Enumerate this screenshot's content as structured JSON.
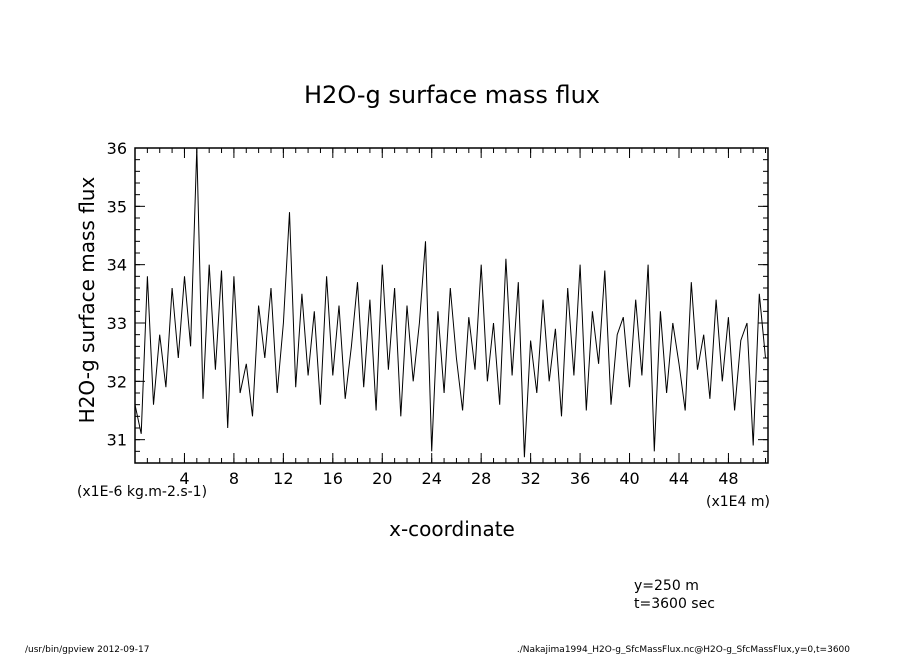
{
  "chart_data": {
    "type": "line",
    "title": "H2O-g surface mass flux",
    "ylabel": "H2O-g surface mass flux",
    "xlabel": "x-coordinate",
    "yunits": "(x1E-6 kg.m-2.s-1)",
    "xunits": "(x1E4 m)",
    "xlim": [
      0,
      51.2
    ],
    "ylim": [
      30.6,
      36.0
    ],
    "xticks": [
      4,
      8,
      12,
      16,
      20,
      24,
      28,
      32,
      36,
      40,
      44,
      48
    ],
    "yticks": [
      31,
      32,
      33,
      34,
      35,
      36
    ],
    "tick_labels_x": [
      "4",
      "8",
      "12",
      "16",
      "20",
      "24",
      "28",
      "32",
      "36",
      "40",
      "44",
      "48"
    ],
    "tick_labels_y": [
      "31",
      "32",
      "33",
      "34",
      "35",
      "36"
    ],
    "series": [
      {
        "x": [
          0,
          0.5,
          1,
          1.5,
          2,
          2.5,
          3,
          3.5,
          4,
          4.5,
          5,
          5.5,
          6,
          6.5,
          7,
          7.5,
          8,
          8.5,
          9,
          9.5,
          10,
          10.5,
          11,
          11.5,
          12,
          12.5,
          13,
          13.5,
          14,
          14.5,
          15,
          15.5,
          16,
          16.5,
          17,
          17.5,
          18,
          18.5,
          19,
          19.5,
          20,
          20.5,
          21,
          21.5,
          22,
          22.5,
          23,
          23.5,
          24,
          24.5,
          25,
          25.5,
          26,
          26.5,
          27,
          27.5,
          28,
          28.5,
          29,
          29.5,
          30,
          30.5,
          31,
          31.5,
          32,
          32.5,
          33,
          33.5,
          34,
          34.5,
          35,
          35.5,
          36,
          36.5,
          37,
          37.5,
          38,
          38.5,
          39,
          39.5,
          40,
          40.5,
          41,
          41.5,
          42,
          42.5,
          43,
          43.5,
          44,
          44.5,
          45,
          45.5,
          46,
          46.5,
          47,
          47.5,
          48,
          48.5,
          49,
          49.5,
          50,
          50.5,
          51
        ],
        "values": [
          31.6,
          31.1,
          33.8,
          31.6,
          32.8,
          31.9,
          33.6,
          32.4,
          33.8,
          32.6,
          36.0,
          31.7,
          34.0,
          32.2,
          33.9,
          31.2,
          33.8,
          31.8,
          32.3,
          31.4,
          33.3,
          32.4,
          33.6,
          31.8,
          33.0,
          34.9,
          31.9,
          33.5,
          32.1,
          33.2,
          31.6,
          33.8,
          32.1,
          33.3,
          31.7,
          32.6,
          33.7,
          31.9,
          33.4,
          31.5,
          34.0,
          32.2,
          33.6,
          31.4,
          33.3,
          32.0,
          33.0,
          34.4,
          30.8,
          33.2,
          31.8,
          33.6,
          32.4,
          31.5,
          33.1,
          32.2,
          34.0,
          32.0,
          33.0,
          31.6,
          34.1,
          32.1,
          33.7,
          30.7,
          32.7,
          31.8,
          33.4,
          32.0,
          32.9,
          31.4,
          33.6,
          32.1,
          34.0,
          31.5,
          33.2,
          32.3,
          33.9,
          31.6,
          32.8,
          33.1,
          31.9,
          33.4,
          32.1,
          34.0,
          30.8,
          33.2,
          31.8,
          33.0,
          32.3,
          31.5,
          33.7,
          32.2,
          32.8,
          31.7,
          33.4,
          32.0,
          33.1,
          31.5,
          32.7,
          33.0,
          30.9,
          33.5,
          32.4
        ]
      }
    ]
  },
  "annotations": {
    "info_y": "y=250 m",
    "info_t": "t=3600 sec",
    "footer_left": "/usr/bin/gpview   2012-09-17",
    "footer_right": "./Nakajima1994_H2O-g_SfcMassFlux.nc@H2O-g_SfcMassFlux,y=0,t=3600"
  }
}
